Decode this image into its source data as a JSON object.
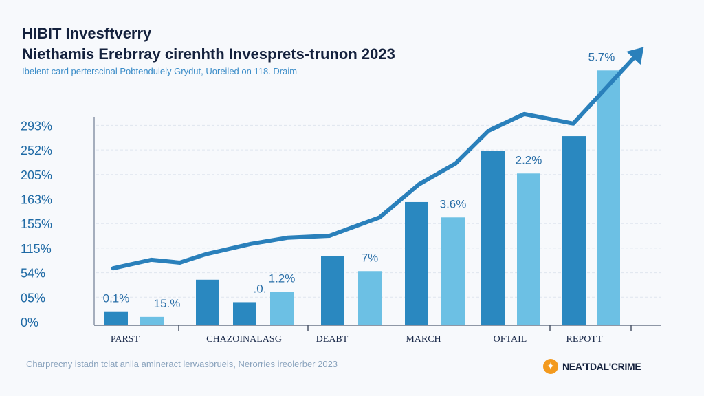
{
  "header": {
    "title_line1": "HIBIT Invesftverry",
    "title_line2": "Niethamis Erebrray cirenhth Invesprets-trunon 2023",
    "subtitle": "Ibelent card perterscinal Pobtendulely Grydut, Uoreiled on 118. Draim"
  },
  "footer": {
    "note": "Charprecny istadn tclat anlla amineract lerwasbrueis, Nerorries ireolerber 2023",
    "logo_text": "NEA'TDAL'CRIME",
    "logo_color": "#f39a1e"
  },
  "chart_data": {
    "type": "bar",
    "title": "",
    "xlabel": "",
    "ylabel": "",
    "grid": true,
    "y_ticks": [
      {
        "label": "0%",
        "value": 0
      },
      {
        "label": "05%",
        "value": 5
      },
      {
        "label": "54%",
        "value": 54
      },
      {
        "label": "115%",
        "value": 115
      },
      {
        "label": "155%",
        "value": 155
      },
      {
        "label": "163%",
        "value": 163
      },
      {
        "label": "205%",
        "value": 205
      },
      {
        "label": "252%",
        "value": 252
      },
      {
        "label": "293%",
        "value": 293
      }
    ],
    "categories": [
      "PARST",
      "CHAZOINALASG",
      "DEABT",
      "MARCH",
      "OFTAIL",
      "REPOTT"
    ],
    "colors": {
      "dark": "#2a88c0",
      "light": "#6cc0e4",
      "line": "#2a80bb",
      "label": "#2a6fa8"
    },
    "bars": [
      {
        "category": 0,
        "shade": "dark",
        "value": 2
      },
      {
        "category": 0,
        "shade": "light",
        "value": 1
      },
      {
        "category": 1,
        "shade": "dark",
        "value": 40
      },
      {
        "category": 1,
        "shade": "dark",
        "value": 4
      },
      {
        "category": 1,
        "shade": "light",
        "value": 16
      },
      {
        "category": 2,
        "shade": "dark",
        "value": 96
      },
      {
        "category": 2,
        "shade": "light",
        "value": 58
      },
      {
        "category": 3,
        "shade": "dark",
        "value": 162
      },
      {
        "category": 3,
        "shade": "light",
        "value": 157
      },
      {
        "category": 4,
        "shade": "dark",
        "value": 250
      },
      {
        "category": 4,
        "shade": "light",
        "value": 207
      },
      {
        "category": 5,
        "shade": "dark",
        "value": 275
      },
      {
        "category": 5,
        "shade": "light",
        "value": 385
      }
    ],
    "trend_line": [
      {
        "x": -0.1,
        "y": 65
      },
      {
        "x": 0.22,
        "y": 86
      },
      {
        "x": 0.46,
        "y": 79
      },
      {
        "x": 0.68,
        "y": 100
      },
      {
        "x": 1.08,
        "y": 122
      },
      {
        "x": 1.5,
        "y": 132
      },
      {
        "x": 1.97,
        "y": 135
      },
      {
        "x": 2.28,
        "y": 152
      },
      {
        "x": 2.52,
        "y": 157
      },
      {
        "x": 2.95,
        "y": 188
      },
      {
        "x": 3.37,
        "y": 226
      },
      {
        "x": 3.75,
        "y": 284
      },
      {
        "x": 4.19,
        "y": 312
      },
      {
        "x": 4.85,
        "y": 296
      },
      {
        "x": 5.8,
        "y": 424
      }
    ],
    "data_labels": [
      {
        "text": "0.1%",
        "bar": 0
      },
      {
        "text": "15.%",
        "bar": 1
      },
      {
        "text": ".0.",
        "bar": 3
      },
      {
        "text": "1.2%",
        "bar": 4
      },
      {
        "text": "7%",
        "bar": 6
      },
      {
        "text": "3.6%",
        "bar": 8
      },
      {
        "text": "2.2%",
        "bar": 10
      },
      {
        "text": "5.7%",
        "bar": 12
      }
    ]
  }
}
